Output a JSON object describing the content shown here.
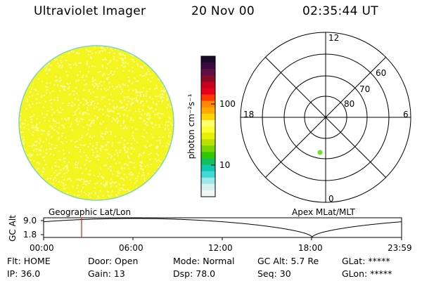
{
  "header": {
    "title": "Ultraviolet Imager",
    "date": "20 Nov 00",
    "time": "02:35:44 UT"
  },
  "image_panel": {
    "fill_color": "#f4f41e",
    "speckle_color": "#ffffb4",
    "edge_color": "#7fd6b0"
  },
  "colorbar": {
    "unit_label": "photon cm⁻²s⁻¹",
    "tick_100": "100",
    "tick_10": "10",
    "colors": [
      "#1a0a2a",
      "#3a0a40",
      "#600e44",
      "#8a0a2a",
      "#c8001e",
      "#e8001c",
      "#ff3a00",
      "#ff8800",
      "#ffaa00",
      "#ffd400",
      "#ffff70",
      "#ffff30",
      "#e8f000",
      "#b8e000",
      "#78d400",
      "#30c800",
      "#10c060",
      "#10c8b0",
      "#40d8d8",
      "#a0e8e8",
      "#d8f0f0",
      "#f0f8f8"
    ]
  },
  "polar_plot": {
    "label_top": "12",
    "label_bottom": "0",
    "label_left": "18",
    "label_right": "6",
    "lat_60": "60",
    "lat_70": "70",
    "lat_80": "80",
    "spot_color": "#70e030"
  },
  "timeline": {
    "axis_label": "GC Alt",
    "y_max": "9.0",
    "y_min": "1.8",
    "left_label": "Geographic Lat/Lon",
    "right_label": "Apex MLat/MLT",
    "ticks": [
      "00:00",
      "06:00",
      "12:00",
      "18:00",
      "23:59"
    ],
    "marker_color": "#cc2222"
  },
  "footer": {
    "flt": "Flt: HOME",
    "ip": "IP: 36.0",
    "door": "Door: Open",
    "gain": "Gain: 13",
    "mode": "Mode: Normal",
    "dsp": "Dsp:    78.0",
    "gcalt": "GC Alt: 5.7 Re",
    "seq": "Seq: 30",
    "glat": "GLat: *****",
    "glon": "GLon: *****"
  }
}
